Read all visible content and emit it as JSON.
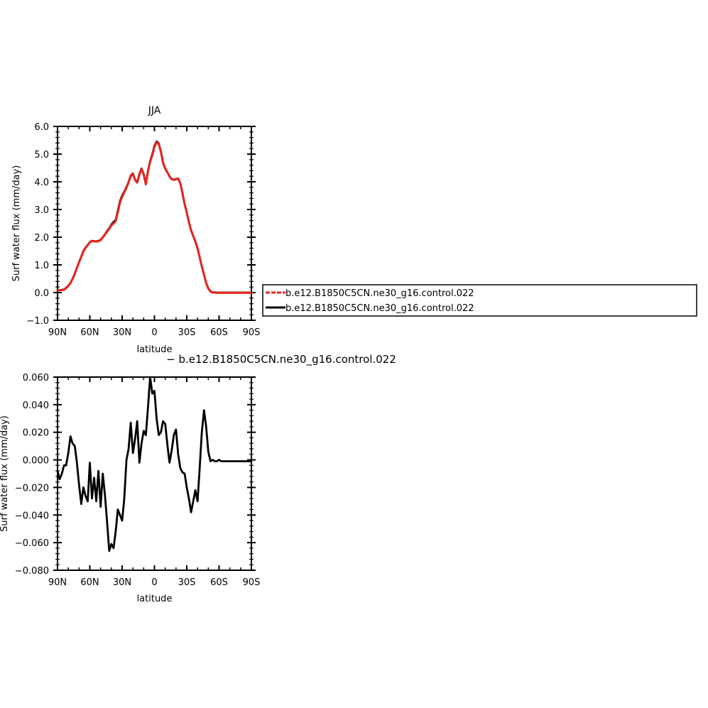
{
  "chart_data": [
    {
      "type": "line",
      "title": "JJA",
      "xlabel": "latitude",
      "ylabel": "Surf water flux (mm/day)",
      "xlim": [
        90,
        -90
      ],
      "ylim": [
        -1.0,
        6.0
      ],
      "x_ticks": [
        {
          "value": 90,
          "label": "90N"
        },
        {
          "value": 60,
          "label": "60N"
        },
        {
          "value": 30,
          "label": "30N"
        },
        {
          "value": 0,
          "label": "0"
        },
        {
          "value": -30,
          "label": "30S"
        },
        {
          "value": -60,
          "label": "60S"
        },
        {
          "value": -90,
          "label": "90S"
        }
      ],
      "y_ticks": [
        {
          "value": 6.0,
          "label": "6.0"
        },
        {
          "value": 5.0,
          "label": "5.0"
        },
        {
          "value": 4.0,
          "label": "4.0"
        },
        {
          "value": 3.0,
          "label": "3.0"
        },
        {
          "value": 2.0,
          "label": "2.0"
        },
        {
          "value": 1.0,
          "label": "1.0"
        },
        {
          "value": 0.0,
          "label": "0.0"
        },
        {
          "value": -1.0,
          "label": "−1.0"
        }
      ],
      "legend": {
        "placement": "right",
        "entries": [
          {
            "label": "b.e12.B1850C5CN.ne30_g16.control.022",
            "color": "#e8251f",
            "dash": true
          },
          {
            "label": "b.e12.B1850C5CN.ne30_g16.control.022",
            "color": "#000000",
            "dash": false
          }
        ]
      },
      "series": [
        {
          "name": "b.e12.B1850C5CN.ne30_g16.control.022",
          "color": "#000000",
          "x": [
            90,
            88,
            86,
            84,
            82,
            80,
            78,
            76,
            74,
            72,
            70,
            68,
            66,
            64,
            62,
            60,
            58,
            56,
            54,
            52,
            50,
            48,
            46,
            44,
            42,
            40,
            38,
            36,
            34,
            32,
            30,
            28,
            26,
            24,
            22,
            20,
            18,
            16,
            14,
            12,
            10,
            8,
            6,
            4,
            2,
            0,
            -2,
            -4,
            -6,
            -8,
            -10,
            -12,
            -14,
            -16,
            -18,
            -20,
            -22,
            -24,
            -26,
            -28,
            -30,
            -32,
            -34,
            -36,
            -38,
            -40,
            -42,
            -44,
            -46,
            -48,
            -50,
            -52,
            -54,
            -56,
            -58,
            -60,
            -62,
            -64,
            -66,
            -68,
            -70,
            -72,
            -74,
            -76,
            -78,
            -80,
            -82,
            -84,
            -86,
            -88,
            -90
          ],
          "values": [
            0.09,
            0.09,
            0.1,
            0.11,
            0.17,
            0.25,
            0.35,
            0.5,
            0.68,
            0.9,
            1.1,
            1.3,
            1.5,
            1.62,
            1.72,
            1.82,
            1.87,
            1.86,
            1.85,
            1.87,
            1.9,
            2.0,
            2.1,
            2.22,
            2.32,
            2.45,
            2.55,
            2.62,
            2.95,
            3.3,
            3.5,
            3.65,
            3.8,
            4.0,
            4.22,
            4.3,
            4.08,
            3.98,
            4.28,
            4.48,
            4.28,
            3.92,
            4.4,
            4.75,
            5.0,
            5.3,
            5.46,
            5.38,
            5.1,
            4.7,
            4.48,
            4.35,
            4.2,
            4.1,
            4.08,
            4.1,
            4.12,
            3.95,
            3.6,
            3.2,
            2.9,
            2.55,
            2.25,
            2.05,
            1.85,
            1.6,
            1.28,
            0.95,
            0.65,
            0.35,
            0.15,
            0.05,
            0.01,
            0.01,
            0.0,
            0.0,
            0.0,
            0.0,
            0.0,
            0.0,
            0.0,
            0.0,
            0.0,
            0.0,
            0.0,
            0.0,
            0.0,
            0.0,
            0.0,
            0.0,
            0.0
          ]
        },
        {
          "name": "b.e12.B1850C5CN.ne30_g16.control.022",
          "color": "#e8251f",
          "x": [
            90,
            88,
            86,
            84,
            82,
            80,
            78,
            76,
            74,
            72,
            70,
            68,
            66,
            64,
            62,
            60,
            58,
            56,
            54,
            52,
            50,
            48,
            46,
            44,
            42,
            40,
            38,
            36,
            34,
            32,
            30,
            28,
            26,
            24,
            22,
            20,
            18,
            16,
            14,
            12,
            10,
            8,
            6,
            4,
            2,
            0,
            -2,
            -4,
            -6,
            -8,
            -10,
            -12,
            -14,
            -16,
            -18,
            -20,
            -22,
            -24,
            -26,
            -28,
            -30,
            -32,
            -34,
            -36,
            -38,
            -40,
            -42,
            -44,
            -46,
            -48,
            -50,
            -52,
            -54,
            -56,
            -58,
            -60,
            -62,
            -64,
            -66,
            -68,
            -70,
            -72,
            -74,
            -76,
            -78,
            -80,
            -82,
            -84,
            -86,
            -88,
            -90
          ],
          "values": [
            0.08,
            0.08,
            0.09,
            0.1,
            0.16,
            0.24,
            0.34,
            0.49,
            0.67,
            0.89,
            1.09,
            1.29,
            1.49,
            1.61,
            1.71,
            1.81,
            1.86,
            1.85,
            1.84,
            1.86,
            1.89,
            1.99,
            2.09,
            2.2,
            2.3,
            2.42,
            2.5,
            2.58,
            2.9,
            3.25,
            3.46,
            3.62,
            3.78,
            3.98,
            4.2,
            4.28,
            4.07,
            3.97,
            4.26,
            4.46,
            4.27,
            3.91,
            4.38,
            4.72,
            4.96,
            5.26,
            5.43,
            5.35,
            5.08,
            4.68,
            4.47,
            4.34,
            4.19,
            4.09,
            4.07,
            4.09,
            4.11,
            3.94,
            3.59,
            3.19,
            2.89,
            2.54,
            2.24,
            2.04,
            1.84,
            1.59,
            1.27,
            0.94,
            0.64,
            0.34,
            0.14,
            0.04,
            0.0,
            0.0,
            -0.01,
            -0.01,
            -0.01,
            -0.01,
            -0.01,
            -0.01,
            -0.01,
            -0.01,
            -0.01,
            -0.01,
            -0.01,
            -0.01,
            -0.01,
            -0.01,
            -0.01,
            -0.01,
            -0.01
          ]
        }
      ]
    },
    {
      "type": "line",
      "title": "− b.e12.B1850C5CN.ne30_g16.control.022",
      "xlabel": "latitude",
      "ylabel": "Surf water flux (mm/day)",
      "xlim": [
        90,
        -90
      ],
      "ylim": [
        -0.08,
        0.06
      ],
      "x_ticks": [
        {
          "value": 90,
          "label": "90N"
        },
        {
          "value": 60,
          "label": "60N"
        },
        {
          "value": 30,
          "label": "30N"
        },
        {
          "value": 0,
          "label": "0"
        },
        {
          "value": -30,
          "label": "30S"
        },
        {
          "value": -60,
          "label": "60S"
        },
        {
          "value": -90,
          "label": "90S"
        }
      ],
      "y_ticks": [
        {
          "value": 0.06,
          "label": "0.060"
        },
        {
          "value": 0.04,
          "label": "0.040"
        },
        {
          "value": 0.02,
          "label": "0.020"
        },
        {
          "value": 0.0,
          "label": "0.000"
        },
        {
          "value": -0.02,
          "label": "−0.020"
        },
        {
          "value": -0.04,
          "label": "−0.040"
        },
        {
          "value": -0.06,
          "label": "−0.060"
        },
        {
          "value": -0.08,
          "label": "−0.080"
        }
      ],
      "series": [
        {
          "color": "#000000",
          "x": [
            90,
            88,
            86,
            84,
            82,
            80,
            78,
            76,
            74,
            72,
            70,
            68,
            66,
            64,
            62,
            60,
            58,
            56,
            54,
            52,
            50,
            48,
            46,
            44,
            42,
            40,
            38,
            36,
            34,
            32,
            30,
            28,
            26,
            24,
            22,
            20,
            18,
            16,
            14,
            12,
            10,
            8,
            6,
            4,
            2,
            0,
            -2,
            -4,
            -6,
            -8,
            -10,
            -12,
            -14,
            -16,
            -18,
            -20,
            -22,
            -24,
            -26,
            -28,
            -30,
            -32,
            -34,
            -36,
            -38,
            -40,
            -42,
            -44,
            -46,
            -48,
            -50,
            -52,
            -54,
            -56,
            -58,
            -60,
            -62,
            -64,
            -66,
            -68,
            -70,
            -72,
            -74,
            -76,
            -78,
            -80,
            -82,
            -84,
            -86,
            -88,
            -90
          ],
          "values": [
            -0.008,
            -0.014,
            -0.01,
            -0.004,
            -0.004,
            0.005,
            0.017,
            0.012,
            0.01,
            -0.002,
            -0.018,
            -0.032,
            -0.02,
            -0.026,
            -0.03,
            -0.002,
            -0.028,
            -0.013,
            -0.03,
            -0.008,
            -0.034,
            -0.01,
            -0.025,
            -0.045,
            -0.066,
            -0.061,
            -0.064,
            -0.052,
            -0.036,
            -0.04,
            -0.044,
            -0.028,
            0.0,
            0.008,
            0.027,
            0.005,
            0.015,
            0.028,
            -0.002,
            0.012,
            0.021,
            0.018,
            0.038,
            0.06,
            0.048,
            0.05,
            0.03,
            0.018,
            0.02,
            0.028,
            0.026,
            0.011,
            -0.002,
            0.007,
            0.018,
            0.022,
            0.004,
            -0.006,
            -0.009,
            -0.01,
            -0.02,
            -0.028,
            -0.038,
            -0.03,
            -0.022,
            -0.03,
            -0.006,
            0.02,
            0.036,
            0.024,
            0.006,
            -0.001,
            0.0,
            -0.001,
            -0.001,
            0.0,
            -0.001,
            -0.001,
            -0.001,
            -0.001,
            -0.001,
            -0.001,
            -0.001,
            -0.001,
            -0.001,
            -0.001,
            -0.001,
            -0.001,
            -0.001,
            -0.001,
            -0.001
          ]
        }
      ]
    }
  ]
}
